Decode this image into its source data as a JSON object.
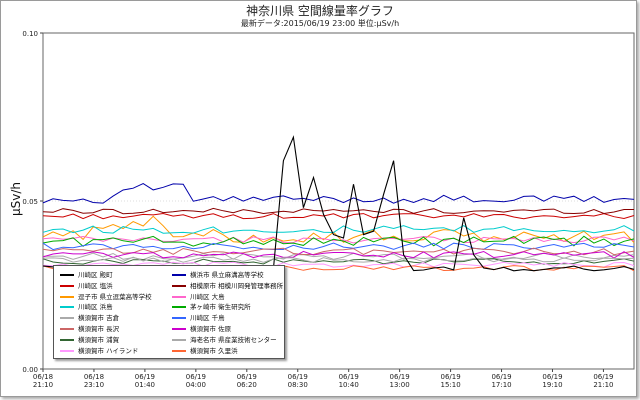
{
  "header": {
    "title": "神奈川県 空間線量率グラフ",
    "subtitle": "最新データ:2015/06/19 23:00 単位:μSv/h"
  },
  "chart_data": {
    "type": "line",
    "ylabel": "μSv/h",
    "ylim": [
      0,
      0.1
    ],
    "yticks": [
      "0.00",
      "0.05",
      "0.10"
    ],
    "xticks": [
      {
        "date": "06/18",
        "time": "21:10"
      },
      {
        "date": "06/18",
        "time": "23:10"
      },
      {
        "date": "06/19",
        "time": "01:40"
      },
      {
        "date": "06/19",
        "time": "04:00"
      },
      {
        "date": "06/19",
        "time": "06:20"
      },
      {
        "date": "06/19",
        "time": "08:30"
      },
      {
        "date": "06/19",
        "time": "10:40"
      },
      {
        "date": "06/19",
        "time": "13:00"
      },
      {
        "date": "06/19",
        "time": "15:10"
      },
      {
        "date": "06/19",
        "time": "17:10"
      },
      {
        "date": "06/19",
        "time": "19:10"
      },
      {
        "date": "06/19",
        "time": "21:10"
      }
    ],
    "points_per_series": 60,
    "series": [
      {
        "name": "川崎区 殿町",
        "color": "#000000",
        "base": 0.03,
        "amp": 0.0008,
        "spikes": [
          [
            24,
            0.062
          ],
          [
            25,
            0.069
          ],
          [
            26,
            0.048
          ],
          [
            27,
            0.057
          ],
          [
            28,
            0.046
          ],
          [
            29,
            0.04
          ],
          [
            30,
            0.039
          ],
          [
            31,
            0.055
          ],
          [
            32,
            0.04
          ],
          [
            33,
            0.041
          ],
          [
            34,
            0.052
          ],
          [
            35,
            0.062
          ],
          [
            36,
            0.034
          ],
          [
            42,
            0.045
          ],
          [
            43,
            0.034
          ]
        ]
      },
      {
        "name": "横浜市 県立麻溝高等学校",
        "color": "#0000aa",
        "base": 0.0505,
        "amp": 0.0012,
        "bump": [
          [
            8,
            14,
            0.0035
          ]
        ]
      },
      {
        "name": "川崎区 塩浜",
        "color": "#cc0000",
        "base": 0.0455,
        "amp": 0.0008
      },
      {
        "name": "相模原市 相模川岡発管理事務所",
        "color": "#880000",
        "base": 0.047,
        "amp": 0.0008
      },
      {
        "name": "逗子市 県立逗葉高等学校",
        "color": "#ff9900",
        "base": 0.0395,
        "amp": 0.002,
        "bump": [
          [
            5,
            12,
            0.004
          ]
        ]
      },
      {
        "name": "川崎区 大島",
        "color": "#ff66cc",
        "base": 0.0385,
        "amp": 0.001
      },
      {
        "name": "川崎区 浜島",
        "color": "#00cccc",
        "base": 0.0415,
        "amp": 0.0012
      },
      {
        "name": "茅ヶ崎市 衛生研究所",
        "color": "#00aa00",
        "base": 0.038,
        "amp": 0.0015
      },
      {
        "name": "横須賀市 吉倉",
        "color": "#aaaaaa",
        "base": 0.0335,
        "amp": 0.001
      },
      {
        "name": "川崎区 千鳥",
        "color": "#3366ff",
        "base": 0.0365,
        "amp": 0.001
      },
      {
        "name": "横須賀市 長沢",
        "color": "#cc6666",
        "base": 0.035,
        "amp": 0.001
      },
      {
        "name": "横須賀市 佐原",
        "color": "#cc00cc",
        "base": 0.034,
        "amp": 0.001
      },
      {
        "name": "横須賀市 浦賀",
        "color": "#336633",
        "base": 0.032,
        "amp": 0.0008
      },
      {
        "name": "海老名市 県産業技術センター",
        "color": "#aaaaaa",
        "base": 0.0325,
        "amp": 0.0008
      },
      {
        "name": "横須賀市 ハイランド",
        "color": "#ff99ff",
        "base": 0.031,
        "amp": 0.0008
      },
      {
        "name": "横須賀市 久里浜",
        "color": "#ff6633",
        "base": 0.03,
        "amp": 0.0008
      }
    ]
  }
}
